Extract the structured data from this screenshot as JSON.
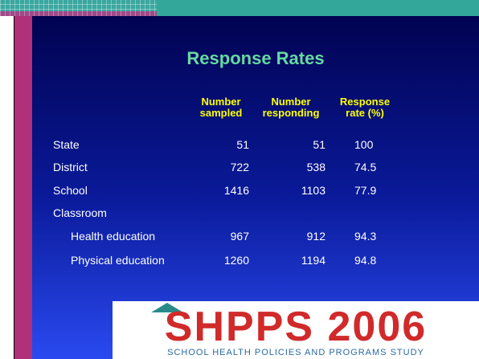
{
  "title": "Response Rates",
  "table": {
    "header": [
      "Number sampled",
      "Number responding",
      "Response rate (%)"
    ],
    "rows": [
      [
        "State",
        51,
        51,
        100
      ],
      [
        "District",
        722,
        538,
        74.5
      ],
      [
        "School",
        1416,
        1103,
        77.9
      ],
      [
        "Classroom"
      ],
      [
        "Health education",
        967,
        912,
        94.3
      ],
      [
        "Physical education",
        1260,
        1194,
        94.8
      ]
    ]
  },
  "logo": {
    "name": "SHPPS 2006",
    "tagline": "SCHOOL HEALTH POLICIES AND PROGRAMS STUDY"
  }
}
